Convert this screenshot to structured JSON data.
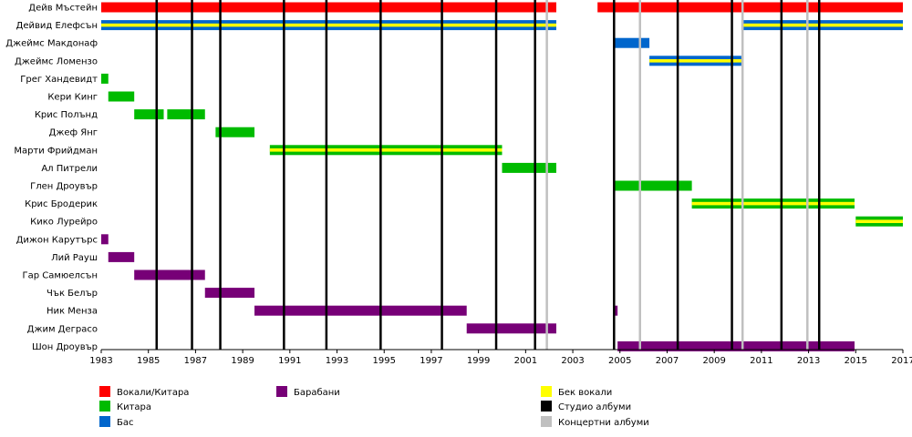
{
  "chart_data": {
    "type": "timeline",
    "xlim": [
      1983,
      2017
    ],
    "x_ticks": [
      "1983",
      "1985",
      "1987",
      "1989",
      "1991",
      "1993",
      "1995",
      "1997",
      "1999",
      "2001",
      "2003",
      "2005",
      "2007",
      "2009",
      "2011",
      "2013",
      "2015",
      "2017"
    ],
    "roles": [
      {
        "key": "vocals_guitar",
        "label": "Вокали/Китара",
        "color": "#ff0000"
      },
      {
        "key": "guitar",
        "label": "Китара",
        "color": "#00bb00"
      },
      {
        "key": "bass",
        "label": "Бас",
        "color": "#0066cc"
      },
      {
        "key": "drums",
        "label": "Барабани",
        "color": "#770077"
      },
      {
        "key": "backing",
        "label": "Бек вокали",
        "color": "#ffff00"
      },
      {
        "key": "studio",
        "label": "Студио албуми",
        "color": "#000000"
      },
      {
        "key": "live",
        "label": "Концертни албуми",
        "color": "#c0c0c0"
      }
    ],
    "studio_albums": [
      1985.35,
      1986.85,
      1988.05,
      1990.75,
      1992.55,
      1994.85,
      1997.45,
      1999.75,
      2001.4,
      2004.75,
      2007.45,
      2009.75,
      2011.85,
      2013.45
    ],
    "live_albums": [
      2001.9,
      2005.85,
      2010.2,
      2012.95
    ],
    "members": [
      {
        "name": "Дейв Мъстейн",
        "spans": [
          {
            "start": 1983,
            "end": 2002.3,
            "role": "vocals_guitar",
            "backing": false
          },
          {
            "start": 2004.05,
            "end": 2017,
            "role": "vocals_guitar",
            "backing": false
          }
        ]
      },
      {
        "name": "Дейвид Елефсън",
        "spans": [
          {
            "start": 1983,
            "end": 2002.3,
            "role": "bass",
            "backing": true
          },
          {
            "start": 2010.15,
            "end": 2017,
            "role": "bass",
            "backing": true
          }
        ]
      },
      {
        "name": "Джеймс Макдонаф",
        "spans": [
          {
            "start": 2004.75,
            "end": 2006.25,
            "role": "bass",
            "backing": false
          }
        ]
      },
      {
        "name": "Джеймс Ломензо",
        "spans": [
          {
            "start": 2006.25,
            "end": 2010.15,
            "role": "bass",
            "backing": true
          }
        ]
      },
      {
        "name": "Грег Хандевидт",
        "spans": [
          {
            "start": 1983,
            "end": 1983.3,
            "role": "guitar",
            "backing": false
          }
        ]
      },
      {
        "name": "Кери Кинг",
        "spans": [
          {
            "start": 1983.3,
            "end": 1984.4,
            "role": "guitar",
            "backing": false
          }
        ]
      },
      {
        "name": "Крис Полънд",
        "spans": [
          {
            "start": 1984.4,
            "end": 1985.65,
            "role": "guitar",
            "backing": false
          },
          {
            "start": 1985.8,
            "end": 1987.4,
            "role": "guitar",
            "backing": false
          }
        ]
      },
      {
        "name": "Джеф Янг",
        "spans": [
          {
            "start": 1987.85,
            "end": 1989.5,
            "role": "guitar",
            "backing": false
          }
        ]
      },
      {
        "name": "Марти Фрийдман",
        "spans": [
          {
            "start": 1990.15,
            "end": 2000.0,
            "role": "guitar",
            "backing": true
          }
        ]
      },
      {
        "name": "Ал Питрели",
        "spans": [
          {
            "start": 2000.0,
            "end": 2002.3,
            "role": "guitar",
            "backing": false
          }
        ]
      },
      {
        "name": "Глен Дроувър",
        "spans": [
          {
            "start": 2004.75,
            "end": 2008.05,
            "role": "guitar",
            "backing": false
          }
        ]
      },
      {
        "name": "Крис Бродерик",
        "spans": [
          {
            "start": 2008.05,
            "end": 2014.95,
            "role": "guitar",
            "backing": true
          }
        ]
      },
      {
        "name": "Кико Лурейро",
        "spans": [
          {
            "start": 2015.0,
            "end": 2017,
            "role": "guitar",
            "backing": true
          }
        ]
      },
      {
        "name": "Дижон Карутърс",
        "spans": [
          {
            "start": 1983,
            "end": 1983.3,
            "role": "drums",
            "backing": false
          }
        ]
      },
      {
        "name": "Лий Рауш",
        "spans": [
          {
            "start": 1983.3,
            "end": 1984.4,
            "role": "drums",
            "backing": false
          }
        ]
      },
      {
        "name": "Гар Самюелсън",
        "spans": [
          {
            "start": 1984.4,
            "end": 1987.4,
            "role": "drums",
            "backing": false
          }
        ]
      },
      {
        "name": "Чък Белър",
        "spans": [
          {
            "start": 1987.4,
            "end": 1989.5,
            "role": "drums",
            "backing": false
          }
        ]
      },
      {
        "name": "Ник Менза",
        "spans": [
          {
            "start": 1989.5,
            "end": 1998.5,
            "role": "drums",
            "backing": false
          },
          {
            "start": 2004.75,
            "end": 2004.9,
            "role": "drums",
            "backing": false
          }
        ]
      },
      {
        "name": "Джим Деграсо",
        "spans": [
          {
            "start": 1998.5,
            "end": 2002.3,
            "role": "drums",
            "backing": false
          }
        ]
      },
      {
        "name": "Шон Дроувър",
        "spans": [
          {
            "start": 2004.9,
            "end": 2014.95,
            "role": "drums",
            "backing": false
          }
        ]
      }
    ]
  }
}
